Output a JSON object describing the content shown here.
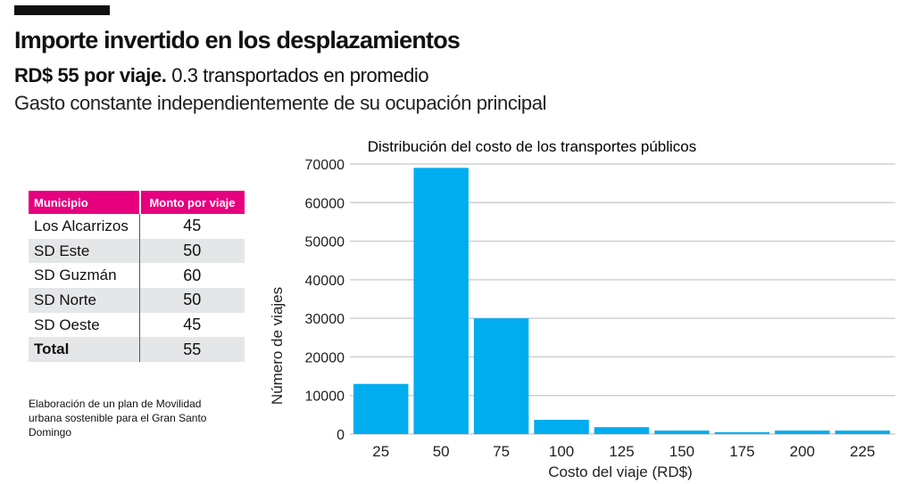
{
  "header": {
    "title": "Importe invertido en los desplazamientos",
    "subtitle_bold": "RD$ 55 por viaje.",
    "subtitle_rest": " 0.3 transportados en promedio",
    "subtitle2": "Gasto constante independientemente de su ocupación principal"
  },
  "table": {
    "headers": [
      "Municipio",
      "Monto por viaje"
    ],
    "rows": [
      [
        "Los Alcarrizos",
        "45"
      ],
      [
        "SD Este",
        "50"
      ],
      [
        "SD Guzmán",
        "60"
      ],
      [
        "SD Norte",
        "50"
      ],
      [
        "SD Oeste",
        "45"
      ],
      [
        "Total",
        "55"
      ]
    ]
  },
  "note": "Elaboración de un plan de Movilidad urbana sostenible para el Gran Santo Domingo",
  "colors": {
    "bar": "#00adef",
    "header": "#e6007e"
  },
  "chart_data": {
    "type": "bar",
    "title": "Distribución del costo de los transportes públicos",
    "xlabel": "Costo del viaje (RD$)",
    "ylabel": "Número de viajes",
    "categories": [
      "25",
      "50",
      "75",
      "100",
      "125",
      "150",
      "175",
      "200",
      "225"
    ],
    "values": [
      13000,
      69000,
      30000,
      3700,
      1800,
      900,
      500,
      900,
      900
    ],
    "ylim": [
      0,
      70000
    ],
    "yticks": [
      "0",
      "10000",
      "20000",
      "30000",
      "40000",
      "50000",
      "60000",
      "70000"
    ],
    "grid": true
  }
}
